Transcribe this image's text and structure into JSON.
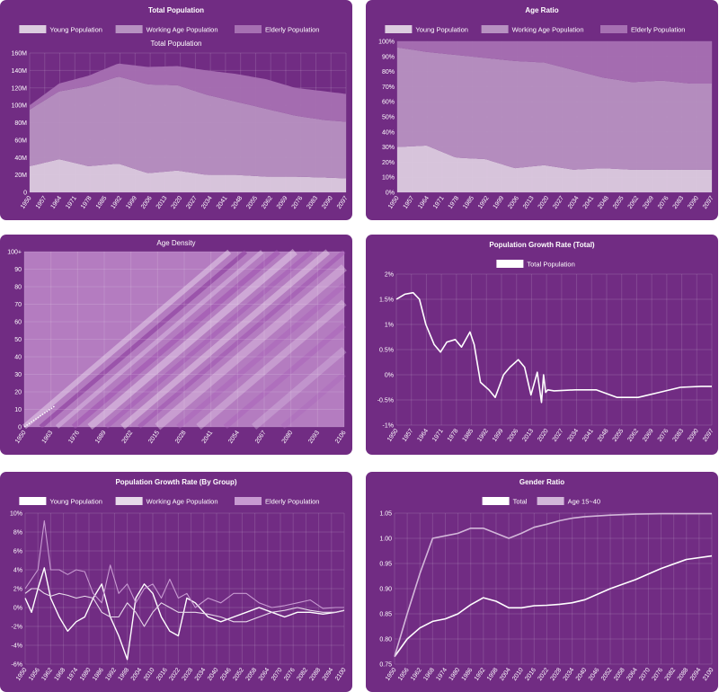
{
  "colors": {
    "panel_bg": "#712c83",
    "young": "#dcccdf",
    "working": "#b791c1",
    "elderly": "#a670b2",
    "line_white": "#ffffff"
  },
  "chart_data": [
    {
      "type": "area",
      "stacked": true,
      "title": "Total Population",
      "subtitle": "Total Population",
      "legend": [
        "Young Population",
        "Working Age Population",
        "Elderly Population"
      ],
      "legend_position": "top",
      "x": [
        1950,
        1964,
        1978,
        1992,
        2006,
        2020,
        2034,
        2048,
        2062,
        2076,
        2090,
        2100
      ],
      "series": [
        {
          "name": "Young Population",
          "values": [
            30,
            38,
            30,
            33,
            22,
            25,
            20,
            20,
            18,
            18,
            17,
            16
          ]
        },
        {
          "name": "Working Age Population",
          "values": [
            65,
            78,
            92,
            100,
            102,
            98,
            92,
            84,
            78,
            70,
            66,
            65
          ]
        },
        {
          "name": "Elderly Population",
          "values": [
            5,
            9,
            12,
            15,
            20,
            22,
            28,
            32,
            34,
            32,
            33,
            32
          ]
        }
      ],
      "x_ticks": [
        "1950",
        "1957",
        "1964",
        "1971",
        "1978",
        "1985",
        "1992",
        "1999",
        "2006",
        "2013",
        "2020",
        "2027",
        "2034",
        "2041",
        "2048",
        "2055",
        "2062",
        "2069",
        "2076",
        "2083",
        "2090",
        "2097"
      ],
      "y_ticks": [
        "0",
        "20M",
        "40M",
        "60M",
        "80M",
        "100M",
        "120M",
        "140M",
        "160M"
      ],
      "ylim": [
        0,
        160
      ],
      "grid": true
    },
    {
      "type": "area",
      "stacked": true,
      "title": "Age Ratio",
      "legend": [
        "Young Population",
        "Working Age Population",
        "Elderly Population"
      ],
      "legend_position": "top",
      "x": [
        1950,
        1964,
        1978,
        1992,
        2006,
        2020,
        2034,
        2048,
        2062,
        2076,
        2090,
        2100
      ],
      "series": [
        {
          "name": "Young Population",
          "values": [
            30,
            31,
            23,
            22,
            16,
            18,
            15,
            16,
            15,
            15,
            15,
            15
          ]
        },
        {
          "name": "Working Age Population",
          "values": [
            66,
            62,
            68,
            67,
            71,
            68,
            66,
            60,
            58,
            59,
            57,
            57
          ]
        },
        {
          "name": "Elderly Population",
          "values": [
            4,
            7,
            9,
            11,
            13,
            14,
            19,
            24,
            27,
            26,
            28,
            28
          ]
        }
      ],
      "x_ticks": [
        "1950",
        "1957",
        "1964",
        "1971",
        "1978",
        "1985",
        "1992",
        "1999",
        "2006",
        "2013",
        "2020",
        "2027",
        "2034",
        "2041",
        "2048",
        "2055",
        "2062",
        "2069",
        "2076",
        "2083",
        "2090",
        "2097"
      ],
      "y_ticks": [
        "0%",
        "10%",
        "20%",
        "30%",
        "40%",
        "50%",
        "60%",
        "70%",
        "80%",
        "90%",
        "100%"
      ],
      "ylim": [
        0,
        100
      ],
      "grid": true
    },
    {
      "type": "heatmap",
      "title": "Age Density",
      "x_ticks": [
        "1950",
        "1963",
        "1976",
        "1989",
        "2002",
        "2015",
        "2028",
        "2041",
        "2054",
        "2067",
        "2080",
        "2093",
        "2106"
      ],
      "y_ticks": [
        "0",
        "10",
        "20",
        "30",
        "40",
        "50",
        "60",
        "70",
        "80",
        "90",
        "100+"
      ],
      "xlim": [
        1950,
        2106
      ],
      "ylim": [
        0,
        100
      ],
      "grid": true
    },
    {
      "type": "line",
      "title": "Population Growth Rate (Total)",
      "legend": [
        "Total Population"
      ],
      "legend_position": "top",
      "x": [
        1950,
        1954,
        1958,
        1961,
        1964,
        1968,
        1971,
        1974,
        1978,
        1981,
        1985,
        1987,
        1990,
        1994,
        1997,
        2001,
        2004,
        2008,
        2011,
        2014,
        2017,
        2019,
        2020,
        2021,
        2022,
        2025,
        2035,
        2045,
        2055,
        2065,
        2075,
        2085,
        2095,
        2100
      ],
      "series": [
        {
          "name": "Total Population",
          "values": [
            1.5,
            1.6,
            1.63,
            1.5,
            1.0,
            0.6,
            0.45,
            0.65,
            0.7,
            0.55,
            0.85,
            0.6,
            -0.15,
            -0.3,
            -0.45,
            0.0,
            0.15,
            0.3,
            0.15,
            -0.4,
            0.05,
            -0.55,
            0.0,
            -0.35,
            -0.3,
            -0.32,
            -0.3,
            -0.3,
            -0.45,
            -0.45,
            -0.35,
            -0.25,
            -0.23,
            -0.23
          ]
        }
      ],
      "x_ticks": [
        "1950",
        "1957",
        "1964",
        "1971",
        "1978",
        "1985",
        "1992",
        "1999",
        "2006",
        "2013",
        "2020",
        "2027",
        "2034",
        "2041",
        "2048",
        "2055",
        "2062",
        "2069",
        "2076",
        "2083",
        "2090",
        "2097"
      ],
      "y_ticks": [
        "-1%",
        "-0.5%",
        "0%",
        "0.5%",
        "1%",
        "1.5%",
        "2%"
      ],
      "ylim": [
        -1,
        2
      ],
      "grid": true
    },
    {
      "type": "line",
      "title": "Population Growth Rate (By Group)",
      "legend": [
        "Young Population",
        "Working Age Population",
        "Elderly Population"
      ],
      "legend_position": "top",
      "x": [
        1950,
        1953,
        1956,
        1959,
        1962,
        1966,
        1970,
        1974,
        1978,
        1982,
        1986,
        1990,
        1994,
        1998,
        2002,
        2006,
        2010,
        2014,
        2018,
        2022,
        2026,
        2030,
        2036,
        2042,
        2048,
        2054,
        2060,
        2066,
        2072,
        2078,
        2084,
        2090,
        2096,
        2100
      ],
      "series": [
        {
          "name": "Young Population",
          "values": [
            1.0,
            -0.5,
            2.0,
            4.2,
            1.0,
            -1.0,
            -2.5,
            -1.5,
            -1.0,
            1.0,
            2.5,
            -1.0,
            -3.0,
            -5.5,
            1.0,
            2.5,
            1.5,
            -1.0,
            -2.5,
            -3.0,
            1.0,
            0.5,
            -1.0,
            -1.5,
            -1.0,
            -0.5,
            0.0,
            -0.5,
            -1.0,
            -0.5,
            -0.5,
            -0.7,
            -0.5,
            -0.3
          ]
        },
        {
          "name": "Working Age Population",
          "values": [
            1.5,
            2.0,
            2.0,
            1.5,
            1.2,
            1.5,
            1.3,
            1.0,
            1.2,
            1.0,
            -0.5,
            -1.0,
            -1.0,
            0.5,
            -0.5,
            -2.0,
            -0.5,
            0.5,
            0.0,
            -0.5,
            -0.5,
            -0.5,
            -0.7,
            -1.0,
            -1.5,
            -1.5,
            -1.0,
            -0.5,
            -0.3,
            0.0,
            -0.3,
            -0.5,
            -0.5,
            -0.3
          ]
        },
        {
          "name": "Elderly Population",
          "values": [
            2.0,
            3.0,
            4.0,
            9.2,
            4.0,
            4.0,
            3.5,
            4.0,
            3.8,
            1.5,
            0.5,
            4.5,
            1.5,
            2.5,
            0.5,
            2.0,
            2.5,
            1.0,
            3.0,
            1.0,
            1.5,
            0.0,
            1.0,
            0.5,
            1.5,
            1.5,
            0.5,
            0.0,
            0.2,
            0.5,
            0.8,
            -0.1,
            0.0,
            0.0
          ]
        }
      ],
      "x_ticks": [
        "1950",
        "1956",
        "1962",
        "1968",
        "1974",
        "1980",
        "1986",
        "1992",
        "1998",
        "2004",
        "2010",
        "2016",
        "2022",
        "2028",
        "2034",
        "2040",
        "2046",
        "2052",
        "2058",
        "2064",
        "2070",
        "2076",
        "2082",
        "2088",
        "2094",
        "2100"
      ],
      "y_ticks": [
        "-6%",
        "-4%",
        "-2%",
        "0%",
        "2%",
        "4%",
        "6%",
        "8%",
        "10%"
      ],
      "ylim": [
        -6,
        10
      ],
      "grid": true
    },
    {
      "type": "line",
      "title": "Gender Ratio",
      "legend": [
        "Total",
        "Age 15~40"
      ],
      "legend_position": "top",
      "x": [
        1950,
        1956,
        1962,
        1968,
        1974,
        1980,
        1986,
        1992,
        1998,
        2004,
        2010,
        2016,
        2022,
        2028,
        2034,
        2040,
        2052,
        2064,
        2076,
        2088,
        2100
      ],
      "series": [
        {
          "name": "Total",
          "values": [
            0.765,
            0.8,
            0.822,
            0.835,
            0.84,
            0.85,
            0.868,
            0.882,
            0.875,
            0.862,
            0.862,
            0.866,
            0.867,
            0.869,
            0.872,
            0.878,
            0.9,
            0.918,
            0.94,
            0.958,
            0.965
          ]
        },
        {
          "name": "Age 15~40",
          "values": [
            0.765,
            0.85,
            0.93,
            1.0,
            1.005,
            1.01,
            1.02,
            1.02,
            1.01,
            1.0,
            1.01,
            1.022,
            1.028,
            1.035,
            1.04,
            1.043,
            1.046,
            1.048,
            1.049,
            1.049,
            1.049
          ]
        }
      ],
      "x_ticks": [
        "1950",
        "1956",
        "1962",
        "1968",
        "1974",
        "1980",
        "1986",
        "1992",
        "1998",
        "2004",
        "2010",
        "2016",
        "2022",
        "2028",
        "2034",
        "2040",
        "2046",
        "2052",
        "2058",
        "2064",
        "2070",
        "2076",
        "2082",
        "2088",
        "2094",
        "2100"
      ],
      "y_ticks": [
        "0.75",
        "0.80",
        "0.85",
        "0.90",
        "0.95",
        "1.00",
        "1.05"
      ],
      "ylim": [
        0.75,
        1.05
      ],
      "grid": true
    }
  ]
}
